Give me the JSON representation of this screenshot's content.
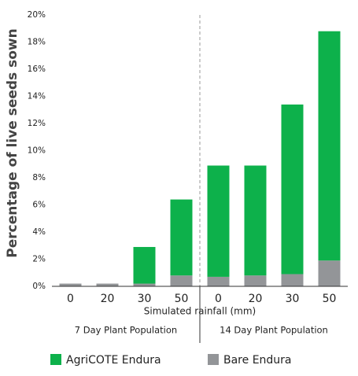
{
  "chart_data": {
    "type": "stacked_bar",
    "y_label": "Percentage of live seeds sown",
    "x_label": "Simulated rainfall (mm)",
    "categories": [
      "0",
      "20",
      "30",
      "50",
      "0",
      "20",
      "30",
      "50"
    ],
    "groups": [
      "7 Day Plant Population",
      "14 Day Plant Population"
    ],
    "series": [
      {
        "name": "AgriCOTE Endura",
        "color": "#0db14b",
        "values": [
          0,
          0,
          2.7,
          5.6,
          8.2,
          8.1,
          12.5,
          16.9
        ]
      },
      {
        "name": "Bare Endura",
        "color": "#939598",
        "values": [
          0.2,
          0.2,
          0.2,
          0.8,
          0.7,
          0.8,
          0.9,
          1.9
        ]
      }
    ],
    "ylim": [
      0,
      20
    ],
    "yticks": [
      {
        "value": 0,
        "label": "0%"
      },
      {
        "value": 2,
        "label": "2%"
      },
      {
        "value": 4,
        "label": "4%"
      },
      {
        "value": 6,
        "label": "6%"
      },
      {
        "value": 8,
        "label": "8%"
      },
      {
        "value": 10,
        "label": "10%"
      },
      {
        "value": 12,
        "label": "12%"
      },
      {
        "value": 14,
        "label": "14%"
      },
      {
        "value": 16,
        "label": "16%"
      },
      {
        "value": 18,
        "label": "18%"
      },
      {
        "value": 20,
        "label": "20%"
      }
    ],
    "grid": false,
    "legend": "bottom"
  }
}
